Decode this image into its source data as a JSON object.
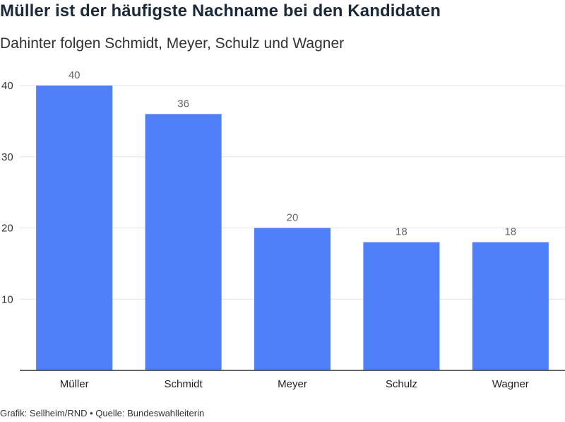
{
  "chart_data": {
    "type": "bar",
    "title": "Müller ist der häufigste Nachname bei den Kandidaten",
    "subtitle": "Dahinter folgen Schmidt, Meyer, Schulz und Wagner",
    "categories": [
      "Müller",
      "Schmidt",
      "Meyer",
      "Schulz",
      "Wagner"
    ],
    "values": [
      40,
      36,
      20,
      18,
      18
    ],
    "ylim": [
      0,
      40
    ],
    "yticks": [
      10,
      20,
      30,
      40
    ],
    "grid": true,
    "data_labels": true,
    "bar_color": "#4f7ff9",
    "source": "Grafik: Sellheim/RND • Quelle: Bundeswahlleiterin"
  }
}
